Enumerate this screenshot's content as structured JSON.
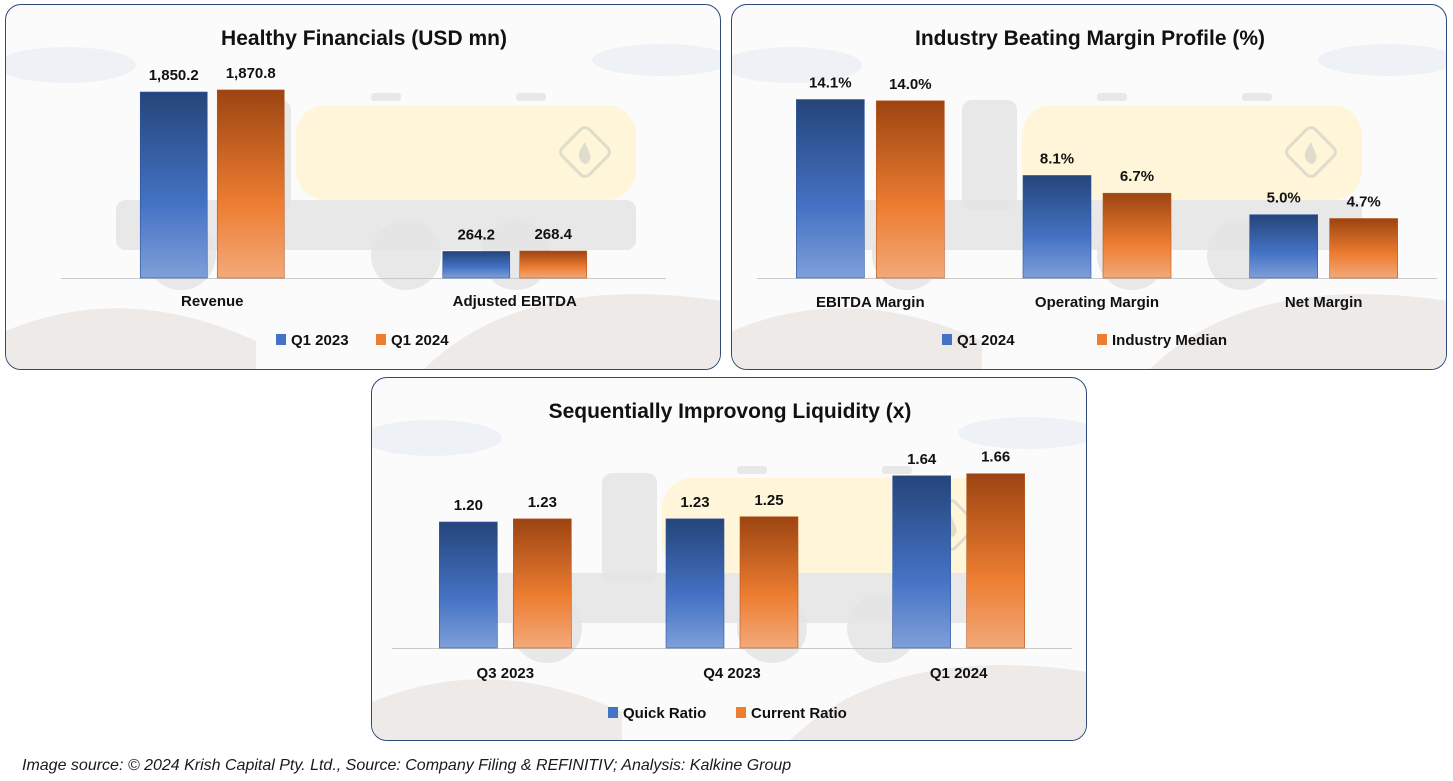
{
  "colors": {
    "series_a_top": "#25457a",
    "series_a_bottom": "#7f9fd8",
    "series_a_mid": "#4472c4",
    "series_b_top": "#9c4412",
    "series_b_bottom": "#f2a97a",
    "series_b_mid": "#ed7d31",
    "frame": "#2f4a7a"
  },
  "chart_data": [
    {
      "type": "bar",
      "title": "Healthy Financials (USD mn)",
      "categories": [
        "Revenue",
        "Adjusted EBITDA"
      ],
      "series": [
        {
          "name": "Q1 2023",
          "values": [
            1850.2,
            264.2
          ],
          "labels": [
            "1,850.2",
            "264.2"
          ]
        },
        {
          "name": "Q1 2024",
          "values": [
            1870.8,
            268.4
          ],
          "labels": [
            "1,870.8",
            "268.4"
          ]
        }
      ],
      "xlabel": "",
      "ylabel": "",
      "ylim": [
        0,
        1900
      ],
      "grid": false,
      "legend": "bottom"
    },
    {
      "type": "bar",
      "title": "Industry Beating Margin Profile (%)",
      "categories": [
        "EBITDA Margin",
        "Operating Margin",
        "Net Margin"
      ],
      "series": [
        {
          "name": "Q1 2024",
          "values": [
            14.1,
            8.1,
            5.0
          ],
          "labels": [
            "14.1%",
            "8.1%",
            "5.0%"
          ]
        },
        {
          "name": "Industry Median",
          "values": [
            14.0,
            6.7,
            4.7
          ],
          "labels": [
            "14.0%",
            "6.7%",
            "4.7%"
          ]
        }
      ],
      "xlabel": "",
      "ylabel": "",
      "ylim": [
        0,
        14.3
      ],
      "grid": false,
      "legend": "bottom"
    },
    {
      "type": "bar",
      "title": "Sequentially Improvong Liquidity (x)",
      "categories": [
        "Q3 2023",
        "Q4 2023",
        "Q1 2024"
      ],
      "series": [
        {
          "name": "Quick Ratio",
          "values": [
            1.2,
            1.23,
            1.64
          ],
          "labels": [
            "1.20",
            "1.23",
            "1.64"
          ]
        },
        {
          "name": "Current Ratio",
          "values": [
            1.23,
            1.25,
            1.66
          ],
          "labels": [
            "1.23",
            "1.25",
            "1.66"
          ]
        }
      ],
      "xlabel": "",
      "ylabel": "",
      "ylim": [
        0,
        2.0
      ],
      "grid": false,
      "legend": "bottom"
    }
  ],
  "footer": "Image source: © 2024 Krish Capital Pty. Ltd., Source: Company Filing & REFINITIV; Analysis: Kalkine Group"
}
